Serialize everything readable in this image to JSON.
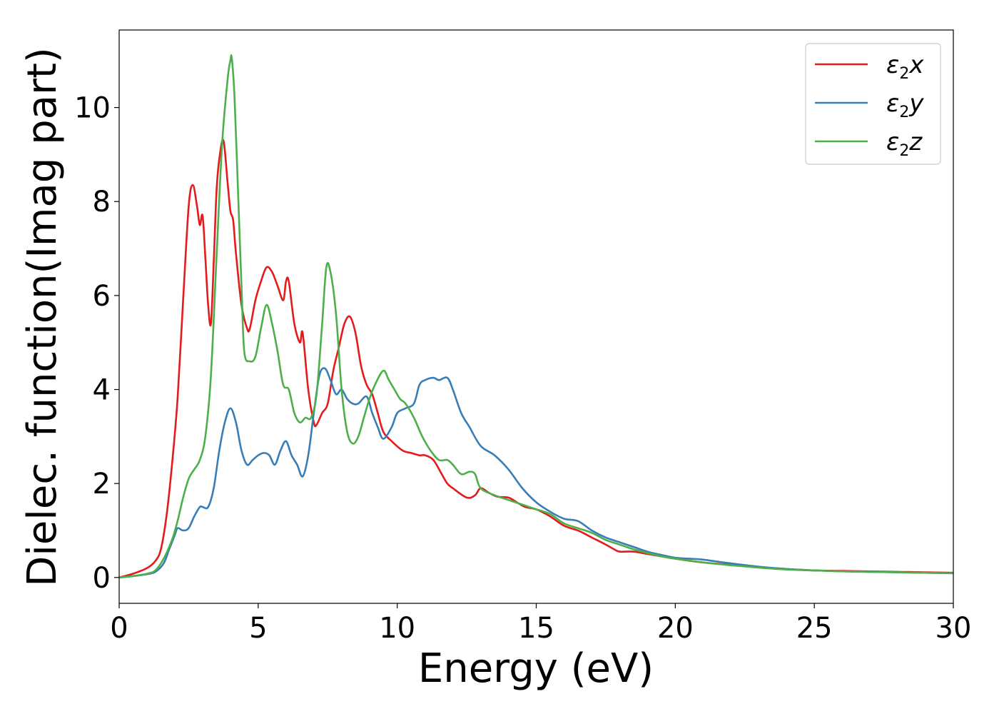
{
  "chart_data": {
    "type": "line",
    "title": "",
    "xlabel": "Energy (eV)",
    "ylabel": "Dielec. function(Imag part)",
    "xlim": [
      0,
      30
    ],
    "ylim": [
      -0.55,
      11.65
    ],
    "xticks": [
      0,
      5,
      10,
      15,
      20,
      25,
      30
    ],
    "xtick_labels": [
      "0",
      "5",
      "10",
      "15",
      "20",
      "25",
      "30"
    ],
    "yticks": [
      0,
      2,
      4,
      6,
      8,
      10
    ],
    "ytick_labels": [
      "0",
      "2",
      "4",
      "6",
      "8",
      "10"
    ],
    "grid": false,
    "legend": {
      "placement": "top-right"
    },
    "series": [
      {
        "name": "ε2x",
        "legend_main": "ε",
        "legend_sub": "2",
        "legend_suffix": "x",
        "color": "#e41a1c",
        "x": [
          0,
          0.5,
          1.0,
          1.3,
          1.5,
          1.7,
          1.9,
          2.1,
          2.3,
          2.5,
          2.65,
          2.8,
          2.9,
          3.0,
          3.1,
          3.2,
          3.3,
          3.4,
          3.5,
          3.6,
          3.75,
          3.9,
          4.0,
          4.1,
          4.2,
          4.4,
          4.6,
          4.7,
          4.9,
          5.1,
          5.3,
          5.5,
          5.7,
          5.9,
          6.0,
          6.1,
          6.3,
          6.5,
          6.6,
          6.8,
          7.0,
          7.1,
          7.3,
          7.5,
          7.7,
          7.9,
          8.1,
          8.3,
          8.5,
          8.7,
          8.9,
          9.1,
          9.3,
          9.5,
          9.8,
          10.2,
          10.5,
          10.8,
          11.0,
          11.3,
          11.6,
          11.8,
          12.0,
          12.5,
          12.8,
          13.0,
          13.3,
          13.6,
          14.0,
          14.3,
          14.6,
          15.0,
          15.5,
          16.0,
          16.5,
          17.0,
          17.5,
          17.8,
          18.0,
          18.5,
          19.0,
          19.5,
          20.0,
          21.0,
          22.0,
          23.0,
          24.0,
          25.0,
          26.0,
          27.0,
          28.0,
          29.0,
          30.0
        ],
        "y": [
          0.0,
          0.08,
          0.2,
          0.35,
          0.6,
          1.3,
          2.4,
          3.8,
          5.9,
          7.9,
          8.35,
          7.9,
          7.5,
          7.7,
          6.8,
          5.8,
          5.4,
          6.7,
          8.2,
          8.9,
          9.3,
          8.4,
          7.8,
          7.6,
          6.9,
          5.8,
          5.3,
          5.3,
          5.9,
          6.3,
          6.6,
          6.5,
          6.2,
          5.9,
          6.3,
          6.3,
          5.4,
          5.0,
          5.2,
          4.0,
          3.3,
          3.25,
          3.5,
          3.7,
          4.4,
          4.9,
          5.4,
          5.55,
          5.2,
          4.5,
          4.1,
          3.9,
          3.5,
          3.1,
          2.9,
          2.7,
          2.65,
          2.6,
          2.6,
          2.5,
          2.2,
          2.0,
          1.9,
          1.7,
          1.75,
          1.9,
          1.8,
          1.72,
          1.7,
          1.6,
          1.5,
          1.45,
          1.3,
          1.1,
          1.0,
          0.85,
          0.7,
          0.6,
          0.55,
          0.55,
          0.5,
          0.45,
          0.4,
          0.32,
          0.27,
          0.22,
          0.18,
          0.15,
          0.14,
          0.13,
          0.12,
          0.11,
          0.1
        ]
      },
      {
        "name": "ε2y",
        "legend_main": "ε",
        "legend_sub": "2",
        "legend_suffix": "y",
        "color": "#377eb8",
        "x": [
          0,
          0.5,
          1.0,
          1.3,
          1.6,
          1.8,
          2.0,
          2.1,
          2.3,
          2.5,
          2.7,
          2.9,
          3.0,
          3.2,
          3.4,
          3.6,
          3.8,
          4.0,
          4.2,
          4.4,
          4.6,
          4.8,
          5.0,
          5.2,
          5.4,
          5.6,
          5.8,
          6.0,
          6.2,
          6.4,
          6.6,
          6.8,
          7.0,
          7.2,
          7.4,
          7.6,
          7.8,
          8.0,
          8.2,
          8.4,
          8.6,
          8.9,
          9.1,
          9.3,
          9.5,
          9.8,
          10.0,
          10.3,
          10.6,
          10.8,
          11.0,
          11.3,
          11.5,
          11.8,
          12.0,
          12.3,
          12.6,
          13.0,
          13.5,
          14.0,
          14.5,
          15.0,
          15.5,
          16.0,
          16.5,
          17.0,
          17.5,
          18.0,
          18.5,
          19.0,
          19.5,
          20.0,
          20.5,
          21.0,
          22.0,
          23.0,
          24.0,
          25.0,
          26.0,
          27.0,
          28.0,
          29.0,
          30.0
        ],
        "y": [
          0.0,
          0.03,
          0.07,
          0.12,
          0.3,
          0.6,
          0.9,
          1.05,
          1.0,
          1.05,
          1.3,
          1.5,
          1.5,
          1.5,
          1.9,
          2.7,
          3.3,
          3.6,
          3.3,
          2.7,
          2.4,
          2.5,
          2.6,
          2.65,
          2.6,
          2.4,
          2.7,
          2.9,
          2.6,
          2.4,
          2.15,
          2.6,
          3.5,
          4.3,
          4.45,
          4.2,
          3.9,
          4.0,
          3.8,
          3.7,
          3.7,
          3.85,
          3.5,
          3.2,
          2.95,
          3.2,
          3.5,
          3.6,
          3.7,
          4.1,
          4.2,
          4.25,
          4.2,
          4.25,
          4.0,
          3.5,
          3.2,
          2.8,
          2.6,
          2.3,
          1.9,
          1.6,
          1.4,
          1.25,
          1.2,
          1.0,
          0.85,
          0.75,
          0.65,
          0.55,
          0.48,
          0.42,
          0.4,
          0.38,
          0.3,
          0.23,
          0.18,
          0.15,
          0.13,
          0.12,
          0.11,
          0.1,
          0.09
        ]
      },
      {
        "name": "ε2z",
        "legend_main": "ε",
        "legend_sub": "2",
        "legend_suffix": "z",
        "color": "#4daf4a",
        "x": [
          0,
          0.5,
          1.0,
          1.3,
          1.6,
          1.9,
          2.1,
          2.3,
          2.5,
          2.7,
          2.9,
          3.1,
          3.3,
          3.5,
          3.7,
          3.9,
          4.0,
          4.05,
          4.15,
          4.3,
          4.4,
          4.5,
          4.7,
          4.9,
          5.1,
          5.3,
          5.5,
          5.7,
          5.9,
          6.1,
          6.3,
          6.5,
          6.7,
          6.9,
          7.1,
          7.3,
          7.45,
          7.6,
          7.8,
          8.0,
          8.2,
          8.4,
          8.6,
          8.8,
          9.0,
          9.2,
          9.5,
          9.7,
          9.9,
          10.1,
          10.3,
          10.6,
          10.9,
          11.2,
          11.5,
          11.8,
          12.0,
          12.3,
          12.6,
          12.8,
          13.0,
          13.5,
          14.0,
          14.5,
          15.0,
          15.5,
          16.0,
          16.5,
          17.0,
          17.5,
          18.0,
          18.5,
          19.0,
          19.5,
          20.0,
          21.0,
          22.0,
          23.0,
          24.0,
          25.0,
          26.0,
          27.0,
          28.0,
          29.0,
          30.0
        ],
        "y": [
          0.0,
          0.03,
          0.08,
          0.15,
          0.4,
          0.8,
          1.2,
          1.7,
          2.1,
          2.3,
          2.5,
          3.0,
          4.3,
          6.8,
          9.2,
          10.6,
          11.0,
          11.05,
          10.2,
          7.8,
          6.2,
          4.8,
          4.6,
          4.7,
          5.3,
          5.8,
          5.4,
          4.8,
          4.1,
          4.0,
          3.5,
          3.3,
          3.4,
          3.4,
          3.9,
          5.4,
          6.6,
          6.5,
          5.6,
          4.0,
          3.1,
          2.85,
          3.0,
          3.4,
          3.8,
          4.1,
          4.4,
          4.2,
          4.0,
          3.8,
          3.7,
          3.4,
          3.0,
          2.7,
          2.5,
          2.5,
          2.4,
          2.2,
          2.25,
          2.2,
          1.9,
          1.75,
          1.65,
          1.55,
          1.45,
          1.35,
          1.15,
          1.05,
          0.95,
          0.8,
          0.7,
          0.6,
          0.52,
          0.45,
          0.4,
          0.32,
          0.26,
          0.21,
          0.17,
          0.15,
          0.13,
          0.12,
          0.11,
          0.1,
          0.09
        ]
      }
    ]
  }
}
